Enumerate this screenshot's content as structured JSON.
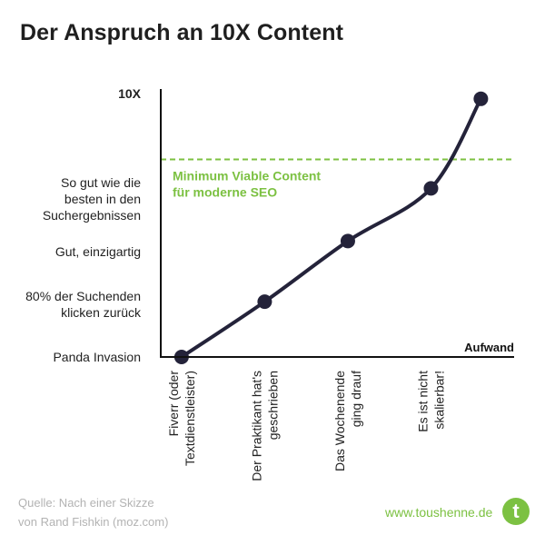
{
  "title": "Der Anspruch an 10X Content",
  "colors": {
    "curve": "#24233a",
    "accent": "#7cc142",
    "axis": "#111111",
    "muted": "#b3b3b3"
  },
  "chart_data": {
    "type": "line",
    "title": "Der Anspruch an 10X Content",
    "xlabel": "Aufwand",
    "ylabel": "",
    "x": [
      0,
      1,
      2,
      3,
      3.6
    ],
    "values": [
      0,
      1.05,
      2.2,
      3.2,
      4.9
    ],
    "x_range": [
      -0.25,
      4
    ],
    "ylim": [
      0,
      5
    ],
    "y_ticks": [
      {
        "value": 0,
        "lines": [
          "Panda Invasion"
        ],
        "bold": false
      },
      {
        "value": 1,
        "lines": [
          "80% der Suchenden",
          "klicken zurück"
        ],
        "bold": false
      },
      {
        "value": 2,
        "lines": [
          "Gut, einzigartig"
        ],
        "bold": false
      },
      {
        "value": 3,
        "lines": [
          "So gut wie die",
          "besten in den",
          "Suchergebnissen"
        ],
        "bold": false
      },
      {
        "value": 5,
        "lines": [
          "10X"
        ],
        "bold": true
      }
    ],
    "x_ticks": [
      {
        "value": 0,
        "lines": [
          "Fiverr (oder",
          "Textdienstleister)"
        ]
      },
      {
        "value": 1,
        "lines": [
          "Der Praktikant hat's",
          "geschrieben"
        ]
      },
      {
        "value": 2,
        "lines": [
          "Das Wochenende",
          "ging drauf"
        ]
      },
      {
        "value": 3,
        "lines": [
          "Es ist nicht",
          "skalierbar!"
        ]
      }
    ],
    "threshold": {
      "value": 3.75,
      "lines": [
        "Minimum Viable Content",
        "für moderne SEO"
      ]
    },
    "grid": false
  },
  "footer": {
    "source_line1": "Quelle: Nach einer Skizze",
    "source_line2": "von Rand Fishkin (moz.com)",
    "url": "www.toushenne.de",
    "logo_letter": "t"
  }
}
